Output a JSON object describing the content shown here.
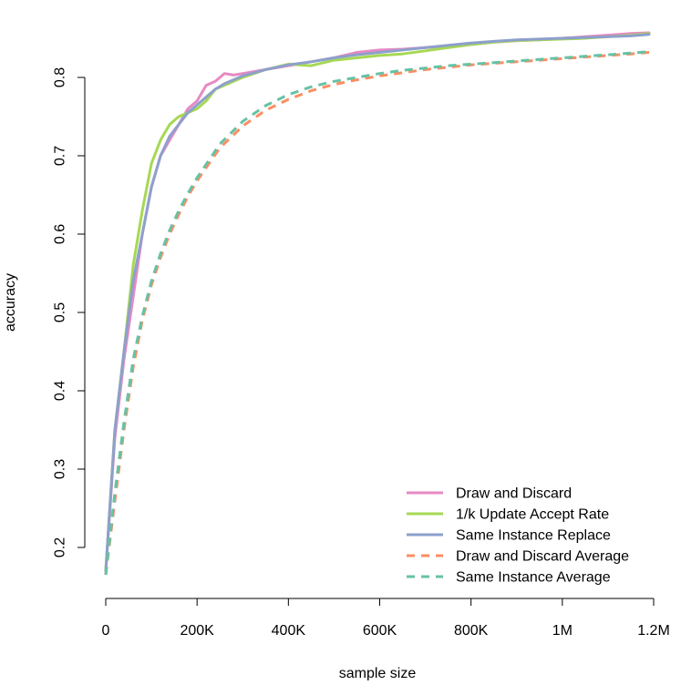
{
  "chart_data": {
    "type": "line",
    "title": "",
    "xlabel": "sample size",
    "ylabel": "accuracy",
    "xlim": [
      0,
      1200000
    ],
    "ylim": [
      0.16,
      0.86
    ],
    "x_ticks": [
      {
        "value": 0,
        "label": "0"
      },
      {
        "value": 200000,
        "label": "200K"
      },
      {
        "value": 400000,
        "label": "400K"
      },
      {
        "value": 600000,
        "label": "600K"
      },
      {
        "value": 800000,
        "label": "800K"
      },
      {
        "value": 1000000,
        "label": "1M"
      },
      {
        "value": 1200000,
        "label": "1.2M"
      }
    ],
    "y_ticks": [
      {
        "value": 0.2,
        "label": "0.2"
      },
      {
        "value": 0.3,
        "label": "0.3"
      },
      {
        "value": 0.4,
        "label": "0.4"
      },
      {
        "value": 0.5,
        "label": "0.5"
      },
      {
        "value": 0.6,
        "label": "0.6"
      },
      {
        "value": 0.7,
        "label": "0.7"
      },
      {
        "value": 0.8,
        "label": "0.8"
      }
    ],
    "grid": false,
    "legend_position": "bottom-right",
    "series": [
      {
        "name": "Draw and Discard",
        "color": "#e78ac3",
        "dash": "solid",
        "x": [
          0,
          20000,
          40000,
          60000,
          80000,
          100000,
          120000,
          140000,
          160000,
          180000,
          200000,
          220000,
          240000,
          260000,
          280000,
          300000,
          350000,
          400000,
          450000,
          500000,
          550000,
          600000,
          650000,
          700000,
          750000,
          800000,
          850000,
          900000,
          950000,
          1000000,
          1050000,
          1100000,
          1150000,
          1190000
        ],
        "y": [
          0.17,
          0.34,
          0.44,
          0.52,
          0.6,
          0.66,
          0.7,
          0.72,
          0.74,
          0.76,
          0.77,
          0.79,
          0.795,
          0.805,
          0.803,
          0.805,
          0.81,
          0.815,
          0.82,
          0.825,
          0.832,
          0.835,
          0.836,
          0.838,
          0.84,
          0.842,
          0.845,
          0.847,
          0.848,
          0.85,
          0.852,
          0.854,
          0.856,
          0.857
        ]
      },
      {
        "name": "1/k Update Accept Rate",
        "color": "#a6d854",
        "dash": "solid",
        "x": [
          0,
          20000,
          40000,
          60000,
          80000,
          100000,
          120000,
          140000,
          160000,
          180000,
          200000,
          220000,
          240000,
          260000,
          280000,
          300000,
          350000,
          400000,
          450000,
          500000,
          550000,
          600000,
          650000,
          700000,
          750000,
          800000,
          850000,
          900000,
          950000,
          1000000,
          1050000,
          1100000,
          1150000,
          1190000
        ],
        "y": [
          0.17,
          0.35,
          0.45,
          0.56,
          0.63,
          0.69,
          0.72,
          0.74,
          0.75,
          0.755,
          0.76,
          0.77,
          0.785,
          0.79,
          0.795,
          0.8,
          0.81,
          0.817,
          0.815,
          0.822,
          0.825,
          0.828,
          0.83,
          0.834,
          0.838,
          0.842,
          0.845,
          0.847,
          0.848,
          0.849,
          0.85,
          0.852,
          0.854,
          0.856
        ]
      },
      {
        "name": "Same Instance Replace",
        "color": "#8da0cb",
        "dash": "solid",
        "x": [
          0,
          20000,
          40000,
          60000,
          80000,
          100000,
          120000,
          140000,
          160000,
          180000,
          200000,
          220000,
          240000,
          260000,
          280000,
          300000,
          350000,
          400000,
          450000,
          500000,
          550000,
          600000,
          650000,
          700000,
          750000,
          800000,
          850000,
          900000,
          950000,
          1000000,
          1050000,
          1100000,
          1150000,
          1190000
        ],
        "y": [
          0.17,
          0.35,
          0.45,
          0.54,
          0.6,
          0.66,
          0.7,
          0.725,
          0.74,
          0.755,
          0.765,
          0.775,
          0.785,
          0.792,
          0.797,
          0.802,
          0.81,
          0.816,
          0.82,
          0.825,
          0.829,
          0.832,
          0.835,
          0.838,
          0.841,
          0.844,
          0.846,
          0.848,
          0.849,
          0.85,
          0.851,
          0.852,
          0.853,
          0.855
        ]
      },
      {
        "name": "Draw and Discard Average",
        "color": "#fc8d62",
        "dash": "dashed",
        "x": [
          0,
          20000,
          40000,
          60000,
          80000,
          100000,
          120000,
          140000,
          160000,
          180000,
          200000,
          250000,
          300000,
          350000,
          400000,
          450000,
          500000,
          550000,
          600000,
          650000,
          700000,
          750000,
          800000,
          850000,
          900000,
          950000,
          1000000,
          1050000,
          1100000,
          1150000,
          1190000
        ],
        "y": [
          0.165,
          0.26,
          0.35,
          0.43,
          0.49,
          0.535,
          0.57,
          0.6,
          0.625,
          0.648,
          0.668,
          0.71,
          0.738,
          0.758,
          0.772,
          0.783,
          0.791,
          0.797,
          0.802,
          0.806,
          0.81,
          0.813,
          0.816,
          0.818,
          0.82,
          0.822,
          0.824,
          0.826,
          0.828,
          0.83,
          0.832
        ]
      },
      {
        "name": "Same Instance Average",
        "color": "#66c2a5",
        "dash": "dashed",
        "x": [
          0,
          20000,
          40000,
          60000,
          80000,
          100000,
          120000,
          140000,
          160000,
          180000,
          200000,
          250000,
          300000,
          350000,
          400000,
          450000,
          500000,
          550000,
          600000,
          650000,
          700000,
          750000,
          800000,
          850000,
          900000,
          950000,
          1000000,
          1050000,
          1100000,
          1150000,
          1190000
        ],
        "y": [
          0.165,
          0.27,
          0.36,
          0.44,
          0.495,
          0.54,
          0.575,
          0.605,
          0.63,
          0.652,
          0.672,
          0.715,
          0.744,
          0.764,
          0.778,
          0.788,
          0.795,
          0.8,
          0.805,
          0.809,
          0.812,
          0.815,
          0.817,
          0.819,
          0.821,
          0.823,
          0.825,
          0.827,
          0.829,
          0.831,
          0.833
        ]
      }
    ]
  }
}
